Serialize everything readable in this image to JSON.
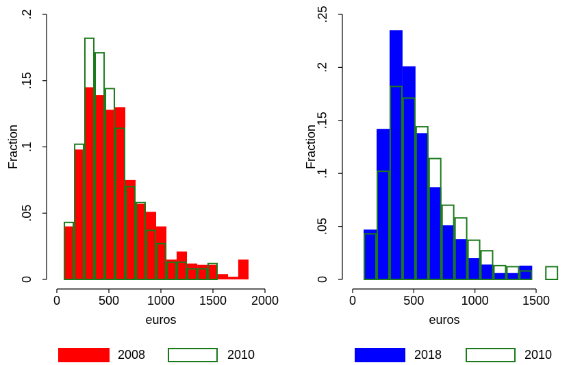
{
  "chart_data": [
    {
      "type": "histogram",
      "x_label": "euros",
      "y_label": "Fraction",
      "xlim": [
        0,
        2000
      ],
      "xticks": [
        0,
        500,
        1000,
        1500,
        2000
      ],
      "ylim": [
        0,
        0.2
      ],
      "yticks": [
        0,
        {
          "value": 0.05,
          "label": ".05"
        },
        {
          "value": 0.1,
          "label": ".1"
        },
        {
          "value": 0.15,
          "label": ".15"
        },
        {
          "value": 0.2,
          "label": ".2"
        }
      ],
      "series": [
        {
          "name": "2008",
          "color": "#ff0000",
          "fill": true,
          "bins": [
            66,
            165,
            263,
            362,
            461,
            559,
            658,
            757,
            855,
            954,
            1053,
            1151,
            1250,
            1349,
            1447,
            1546,
            1645,
            1743,
            1842
          ],
          "values": [
            0.04,
            0.098,
            0.145,
            0.139,
            0.128,
            0.13,
            0.075,
            0.057,
            0.051,
            0.04,
            0.015,
            0.021,
            0.012,
            0.011,
            0.011,
            0.004,
            0.002,
            0.015
          ]
        },
        {
          "name": "2010",
          "color": "#1a7a1a",
          "fill": false,
          "bins": [
            66,
            165,
            263,
            362,
            461,
            559,
            658,
            757,
            855,
            954,
            1053,
            1151,
            1250,
            1349,
            1447,
            1546
          ],
          "values": [
            0.043,
            0.102,
            0.182,
            0.171,
            0.144,
            0.114,
            0.07,
            0.058,
            0.037,
            0.027,
            0.013,
            0.013,
            0.008,
            0.008,
            0.012
          ]
        }
      ]
    },
    {
      "type": "histogram",
      "x_label": "euros",
      "y_label": "Fraction",
      "xlim": [
        0,
        1500
      ],
      "xticks": [
        0,
        500,
        1000,
        1500
      ],
      "ylim": [
        0,
        0.25
      ],
      "yticks": [
        0,
        {
          "value": 0.05,
          "label": ".05"
        },
        {
          "value": 0.1,
          "label": ".1"
        },
        {
          "value": 0.15,
          "label": ".15"
        },
        {
          "value": 0.2,
          "label": ".2"
        },
        {
          "value": 0.25,
          "label": ".25"
        }
      ],
      "series": [
        {
          "name": "2018",
          "color": "#0000ff",
          "fill": true,
          "bins": [
            90,
            196,
            302,
            408,
            514,
            620,
            726,
            832,
            938,
            1044,
            1150,
            1256,
            1362,
            1468
          ],
          "values": [
            0.047,
            0.142,
            0.235,
            0.201,
            0.138,
            0.087,
            0.051,
            0.038,
            0.02,
            0.014,
            0.006,
            0.006,
            0.013
          ]
        },
        {
          "name": "2010",
          "color": "#1a7a1a",
          "fill": false,
          "bins": [
            90,
            196,
            302,
            408,
            514,
            620,
            726,
            832,
            938,
            1044,
            1150,
            1256,
            1362,
            1468,
            1574,
            1680
          ],
          "values": [
            0.043,
            0.102,
            0.182,
            0.171,
            0.144,
            0.114,
            0.07,
            0.058,
            0.037,
            0.027,
            0.013,
            0.012,
            0.008,
            0,
            0.012
          ]
        }
      ]
    }
  ]
}
